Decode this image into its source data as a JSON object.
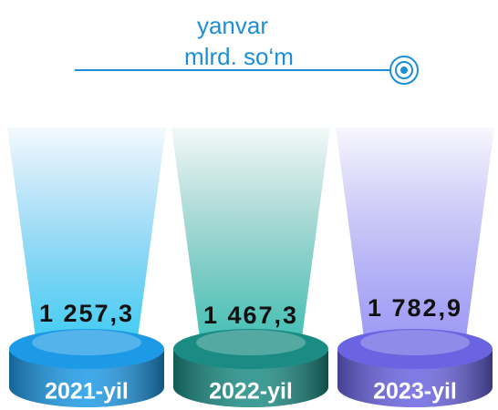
{
  "chart_data": {
    "type": "pedestal",
    "title": "yanvar",
    "subtitle": "mlrd. so‘m",
    "categories": [
      "2021-yil",
      "2022-yil",
      "2023-yil"
    ],
    "values": [
      1257.3,
      1467.3,
      1782.9
    ],
    "value_labels": [
      "1 257,3",
      "1 467,3",
      "1 782,9"
    ],
    "colors": [
      "#1d9ae6",
      "#1b8c84",
      "#6a64e2"
    ]
  }
}
